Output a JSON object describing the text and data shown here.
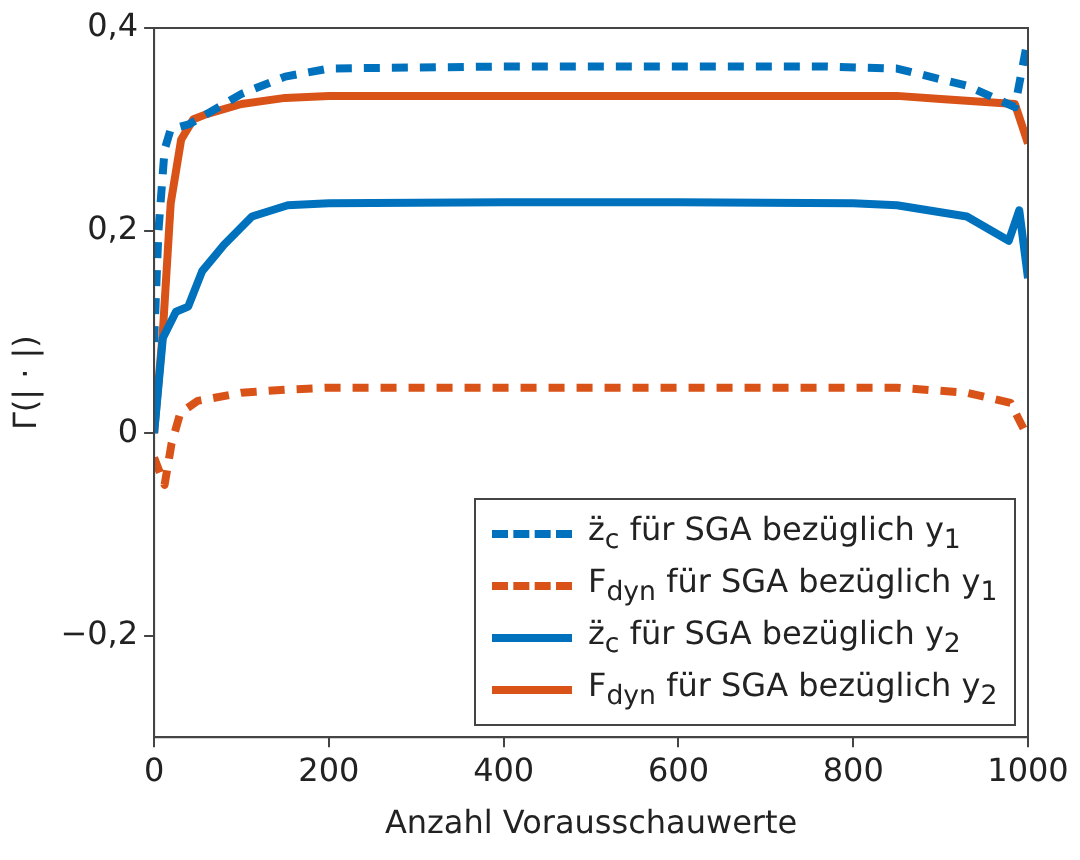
{
  "chart_data": {
    "type": "line",
    "xlabel": "Anzahl Vorausschauwerte",
    "ylabel": "Γ(| · |)",
    "xlim": [
      0,
      1000
    ],
    "xticks": [
      0,
      200,
      400,
      600,
      800,
      1000
    ],
    "ylim": [
      -0.3,
      0.4
    ],
    "yticks": [
      {
        "value": -0.2,
        "label": "−0,2"
      },
      {
        "value": 0,
        "label": "0"
      },
      {
        "value": 0.2,
        "label": "0,2"
      },
      {
        "value": 0.4,
        "label": "0,4"
      }
    ],
    "grid": false,
    "legend": "bottom right",
    "marker": "none",
    "series": [
      {
        "name": "z̈$_{c}$ für SGA bezüglich y$_{1}$",
        "color": "#0072bd",
        "line_style": "dashed",
        "x": [
          0,
          5,
          12,
          19,
          40,
          60,
          100,
          150,
          200,
          400,
          600,
          767,
          850,
          930,
          985,
          1000
        ],
        "values": [
          0.09,
          0.2,
          0.28,
          0.3,
          0.305,
          0.315,
          0.335,
          0.352,
          0.36,
          0.362,
          0.362,
          0.362,
          0.36,
          0.343,
          0.322,
          0.39
        ]
      },
      {
        "name": "F$_{dyn}$ für SGA bezüglich y$_{1}$",
        "color": "#d95319",
        "line_style": "dashed",
        "x": [
          0,
          12,
          20,
          30,
          50,
          100,
          150,
          200,
          400,
          600,
          850,
          930,
          980,
          1000
        ],
        "values": [
          -0.024,
          -0.051,
          -0.01,
          0.02,
          0.032,
          0.04,
          0.043,
          0.045,
          0.045,
          0.045,
          0.045,
          0.04,
          0.03,
          -0.004
        ]
      },
      {
        "name": "z̈$_{c}$ für SGA bezüglich y$_{2}$",
        "color": "#0072bd",
        "line_style": "solid",
        "x": [
          0,
          10,
          25,
          39,
          55,
          80,
          112,
          153,
          200,
          400,
          600,
          800,
          850,
          930,
          978,
          990,
          1000
        ],
        "values": [
          0.0,
          0.094,
          0.12,
          0.125,
          0.16,
          0.186,
          0.214,
          0.225,
          0.227,
          0.228,
          0.228,
          0.227,
          0.225,
          0.214,
          0.19,
          0.22,
          0.153
        ]
      },
      {
        "name": "F$_{dyn}$ für SGA bezüglich y$_{2}$",
        "color": "#d95319",
        "line_style": "solid",
        "x": [
          0,
          10,
          19,
          31,
          45,
          60,
          100,
          150,
          200,
          400,
          600,
          850,
          900,
          985,
          1000
        ],
        "values": [
          0.0,
          0.1,
          0.227,
          0.29,
          0.31,
          0.315,
          0.325,
          0.331,
          0.333,
          0.333,
          0.333,
          0.333,
          0.33,
          0.325,
          0.286
        ]
      }
    ]
  }
}
